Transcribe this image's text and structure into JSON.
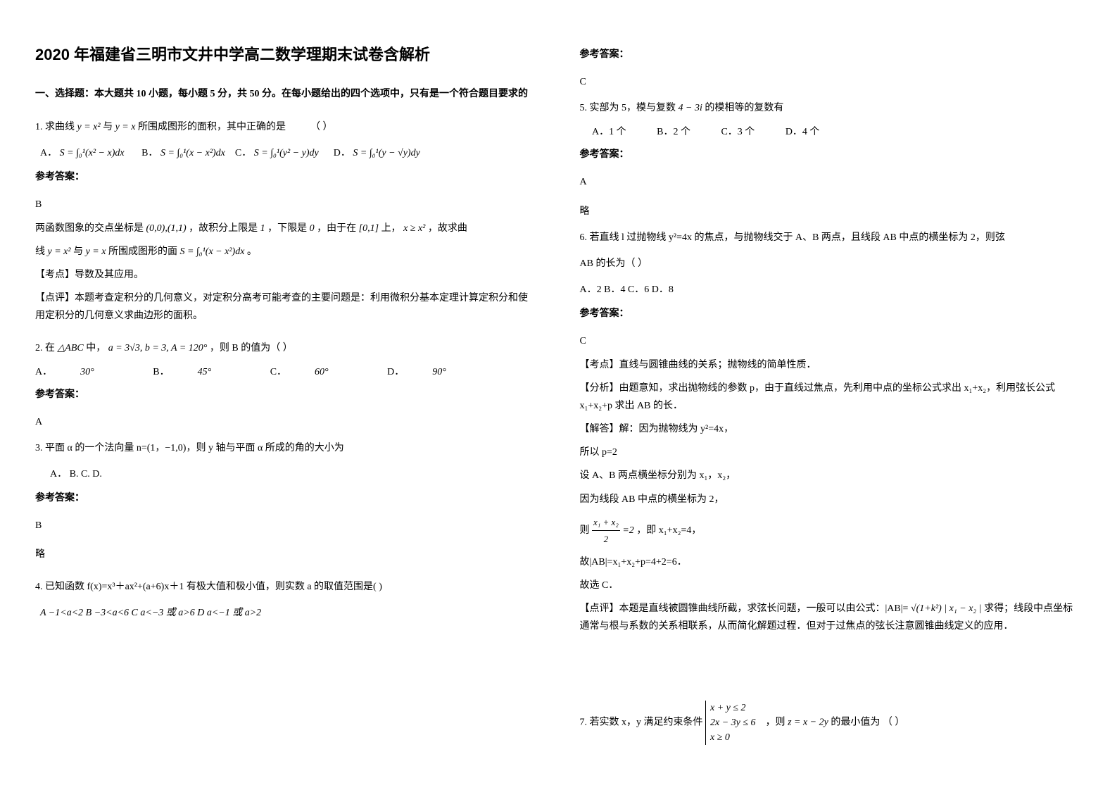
{
  "title": "2020 年福建省三明市文井中学高二数学理期末试卷含解析",
  "section1": "一、选择题：本大题共 10 小题，每小题 5 分，共 50 分。在每小题给出的四个选项中，只有是一个符合题目要求的",
  "ansLabel": "参考答案：",
  "略": "略",
  "q1": {
    "stem_a": "1. 求曲线",
    "formula1": "y = x²",
    "mid": "与",
    "formula2": "y = x",
    "stem_b": "所围成图形的面积，其中正确的是",
    "paren": "（       ）",
    "optA_label": "A．",
    "optA": "S = ∫₀¹(x² − x)dx",
    "optB_label": "B．",
    "optB": "S = ∫₀¹(x − x²)dx",
    "optC_label": "C．",
    "optC": "S = ∫₀¹(y² − y)dy",
    "optD_label": "D．",
    "optD": "S = ∫₀¹(y − √y)dy",
    "ans": "B",
    "expl1a": "两函数图象的交点坐标是",
    "expl1b": "(0,0),(1,1)",
    "expl1c": "，故积分上限是",
    "expl1d": "1",
    "expl1e": "，下限是",
    "expl1f": "0",
    "expl1g": "，由于在",
    "expl1h": "[0,1]",
    "expl1i": "上，",
    "expl1j": "x ≥ x²",
    "expl1k": "，故求曲",
    "expl2a": "线",
    "expl2b": "y = x²",
    "expl2c": "与",
    "expl2d": "y = x",
    "expl2e": "所围成图形的面",
    "expl2f": "S = ∫₀¹(x − x²)dx",
    "expl2g": "。",
    "kd": "【考点】导数及其应用。",
    "dp": "【点评】本题考查定积分的几何意义，对定积分高考可能考查的主要问题是：利用微积分基本定理计算定积分和使用定积分的几何意义求曲边形的面积。"
  },
  "q2": {
    "stem_a": "2. 在",
    "tri": "△ABC",
    "stem_b": "中，",
    "cond": "a = 3√3, b = 3, A = 120°",
    "stem_c": "，则 B 的值为（       ）",
    "A_label": "A．",
    "A": "30°",
    "B_label": "B．",
    "B": "45°",
    "C_label": "C．",
    "C": "60°",
    "D_label": "D．",
    "D": "90°",
    "ans": "A"
  },
  "q3": {
    "stem": "3. 平面 α 的一个法向量 n=(1，−1,0)，则 y 轴与平面 α 所成的角的大小为",
    "opts": "A．       B.       C.       D.",
    "ans": "B"
  },
  "q4": {
    "stem": "4. 已知函数 f(x)=x³＋ax²+(a+6)x＋1 有极大值和极小值，则实数 a 的取值范围是(     )",
    "opts": "A −1<a<2  B −3<a<6   C a<−3 或 a>6   D a<−1 或 a>2",
    "ans": "C"
  },
  "q5": {
    "stem_a": "5. 实部为 5，模与复数",
    "cplx": "4 − 3i",
    "stem_b": "的模相等的复数有",
    "A": "A．1 个",
    "B": "B．2 个",
    "C": "C．3 个",
    "D": "D．4 个",
    "ans": "A"
  },
  "q6": {
    "stem1": "6. 若直线 l 过抛物线 y²=4x 的焦点，与抛物线交于 A、B 两点，且线段 AB 中点的横坐标为 2，则弦",
    "stem2": "AB 的长为（     ）",
    "opts": "A．2   B．4   C．6   D．8",
    "ans": "C",
    "kd": "【考点】直线与圆锥曲线的关系；抛物线的简单性质．",
    "fx": "【分析】由题意知，求出抛物线的参数 p，由于直线过焦点，先利用中点的坐标公式求出 x₁+x₂，利用弦长公式 x₁+x₂+p 求出 AB 的长．",
    "jd_lbl": "【解答】解：因为抛物线为 y²=4x，",
    "s1": "所以 p=2",
    "s2": "设 A、B 两点横坐标分别为 x₁，x₂，",
    "s3": "因为线段 AB 中点的横坐标为 2，",
    "s4a": "则",
    "frac_num": "x₁ + x₂",
    "frac_den": "2",
    "eq2": "=2",
    "s4b": "，即 x₁+x₂=4，",
    "s5": "故|AB|=x₁+x₂+p=4+2=6．",
    "s6": "故选 C．",
    "dp1": "【点评】本题是直线被圆锥曲线所截，求弦长问题，一般可以由公式：|AB|=",
    "dpf": "√(1+k²) | x₁ − x₂ |",
    "dp2": "求得；线段中点坐标通常与根与系数的关系相联系，从而简化解题过程．但对于过焦点的弦长注意圆锥曲线定义的应用．"
  },
  "q7": {
    "stem_a": "7. 若实数 x，y 满足约束条件",
    "c1": "x + y ≤ 2",
    "c2": "2x − 3y ≤ 6",
    "c3": "x ≥ 0",
    "stem_b": "，则",
    "z": "z = x − 2y",
    "stem_c": "的最小值为 （    ）"
  }
}
